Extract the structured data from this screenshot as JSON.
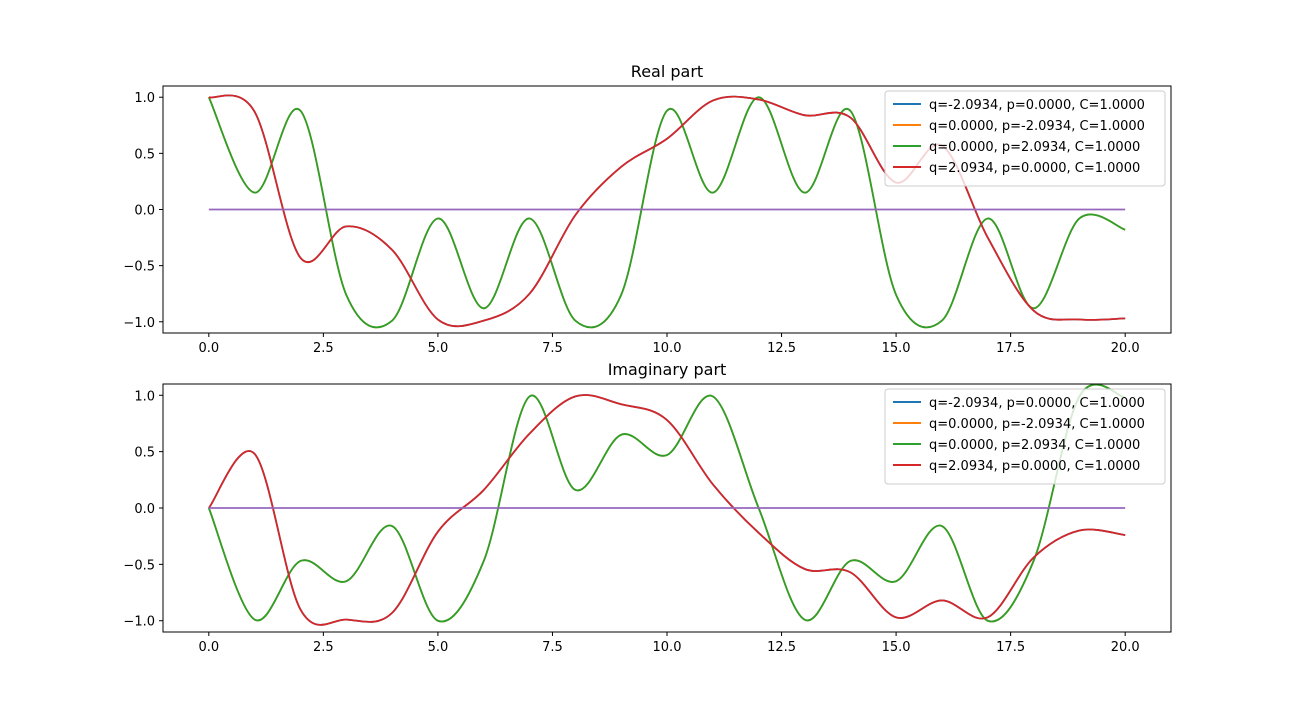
{
  "chart_data": [
    {
      "type": "line",
      "title": "Real part",
      "xlabel": "",
      "ylabel": "",
      "xlim": [
        -1,
        21
      ],
      "ylim": [
        -1.1,
        1.1
      ],
      "xticks": [
        0.0,
        2.5,
        5.0,
        7.5,
        10.0,
        12.5,
        15.0,
        17.5,
        20.0
      ],
      "xtick_labels": [
        "0.0",
        "2.5",
        "5.0",
        "7.5",
        "10.0",
        "12.5",
        "15.0",
        "17.5",
        "20.0"
      ],
      "yticks": [
        1.0,
        0.5,
        0.0,
        -0.5,
        -1.0
      ],
      "ytick_labels": [
        "1.0",
        "0.5",
        "0.0",
        "−0.5",
        "−1.0"
      ],
      "grid": false,
      "legend_position": "upper right",
      "series": [
        {
          "name": "q=-2.0934, p=0.0000, C=1.0000",
          "color": "#1f77b4",
          "x": [
            0,
            1,
            2,
            3,
            4,
            5,
            6,
            7,
            8,
            9,
            10,
            11,
            12,
            13,
            14,
            15,
            16,
            17,
            18,
            19,
            20
          ],
          "y": [
            1.0,
            0.87,
            -0.43,
            -0.15,
            -0.36,
            -0.98,
            -0.99,
            -0.75,
            -0.05,
            0.38,
            0.63,
            0.97,
            0.98,
            0.84,
            0.82,
            0.24,
            0.57,
            -0.25,
            -0.9,
            -0.98,
            -0.97
          ]
        },
        {
          "name": "q=0.0000, p=-2.0934, C=1.0000",
          "color": "#ff7f0e",
          "x": [
            0,
            1,
            2,
            3,
            4,
            5,
            6,
            7,
            8,
            9,
            10,
            11,
            12,
            13,
            14,
            15,
            16,
            17,
            18,
            19,
            20
          ],
          "y": [
            1.0,
            0.15,
            0.88,
            -0.76,
            -0.99,
            -0.08,
            -0.88,
            -0.08,
            -0.99,
            -0.76,
            0.88,
            0.15,
            1.0,
            0.15,
            0.88,
            -0.76,
            -0.99,
            -0.08,
            -0.88,
            -0.08,
            -0.18
          ]
        },
        {
          "name": "q=0.0000, p=2.0934, C=1.0000",
          "color": "#2ca02c",
          "x": [
            0,
            1,
            2,
            3,
            4,
            5,
            6,
            7,
            8,
            9,
            10,
            11,
            12,
            13,
            14,
            15,
            16,
            17,
            18,
            19,
            20
          ],
          "y": [
            1.0,
            0.15,
            0.88,
            -0.76,
            -0.99,
            -0.08,
            -0.88,
            -0.08,
            -0.99,
            -0.76,
            0.88,
            0.15,
            1.0,
            0.15,
            0.88,
            -0.76,
            -0.99,
            -0.08,
            -0.88,
            -0.08,
            -0.18
          ]
        },
        {
          "name": "q=2.0934, p=0.0000, C=1.0000",
          "color": "#d62728",
          "x": [
            0,
            1,
            2,
            3,
            4,
            5,
            6,
            7,
            8,
            9,
            10,
            11,
            12,
            13,
            14,
            15,
            16,
            17,
            18,
            19,
            20
          ],
          "y": [
            1.0,
            0.87,
            -0.43,
            -0.15,
            -0.36,
            -0.98,
            -0.99,
            -0.75,
            -0.05,
            0.38,
            0.63,
            0.97,
            0.98,
            0.84,
            0.82,
            0.24,
            0.57,
            -0.25,
            -0.9,
            -0.98,
            -0.97
          ]
        },
        {
          "name": "",
          "color": "#9467bd",
          "x": [
            0,
            20
          ],
          "y": [
            0.0,
            0.0
          ]
        }
      ]
    },
    {
      "type": "line",
      "title": "Imaginary part",
      "xlabel": "",
      "ylabel": "",
      "xlim": [
        -1,
        21
      ],
      "ylim": [
        -1.1,
        1.1
      ],
      "xticks": [
        0.0,
        2.5,
        5.0,
        7.5,
        10.0,
        12.5,
        15.0,
        17.5,
        20.0
      ],
      "xtick_labels": [
        "0.0",
        "2.5",
        "5.0",
        "7.5",
        "10.0",
        "12.5",
        "15.0",
        "17.5",
        "20.0"
      ],
      "yticks": [
        1.0,
        0.5,
        0.0,
        -0.5,
        -1.0
      ],
      "ytick_labels": [
        "1.0",
        "0.5",
        "0.0",
        "−0.5",
        "−1.0"
      ],
      "grid": false,
      "legend_position": "upper right",
      "series": [
        {
          "name": "q=-2.0934, p=0.0000, C=1.0000",
          "color": "#1f77b4",
          "x": [
            0,
            1,
            2,
            3,
            4,
            5,
            6,
            7,
            8,
            9,
            10,
            11,
            12,
            13,
            14,
            15,
            16,
            17,
            18,
            19,
            20
          ],
          "y": [
            0.0,
            0.48,
            -0.9,
            -0.99,
            -0.93,
            -0.21,
            0.16,
            0.66,
            0.99,
            0.92,
            0.78,
            0.21,
            -0.22,
            -0.54,
            -0.57,
            -0.97,
            -0.82,
            -0.97,
            -0.44,
            -0.2,
            -0.24
          ]
        },
        {
          "name": "q=0.0000, p=-2.0934, C=1.0000",
          "color": "#ff7f0e",
          "x": [
            0,
            1,
            2,
            3,
            4,
            5,
            6,
            7,
            8,
            9,
            10,
            11,
            12,
            13,
            14,
            15,
            16,
            17,
            18,
            19,
            20
          ],
          "y": [
            0.0,
            -0.99,
            -0.47,
            -0.65,
            -0.16,
            -1.0,
            -0.47,
            0.99,
            0.16,
            0.65,
            0.47,
            0.99,
            0.0,
            -0.99,
            -0.47,
            -0.65,
            -0.16,
            -1.0,
            -0.47,
            0.99,
            0.98
          ]
        },
        {
          "name": "q=0.0000, p=2.0934, C=1.0000",
          "color": "#2ca02c",
          "x": [
            0,
            1,
            2,
            3,
            4,
            5,
            6,
            7,
            8,
            9,
            10,
            11,
            12,
            13,
            14,
            15,
            16,
            17,
            18,
            19,
            20
          ],
          "y": [
            0.0,
            -0.99,
            -0.47,
            -0.65,
            -0.16,
            -1.0,
            -0.47,
            0.99,
            0.16,
            0.65,
            0.47,
            0.99,
            0.0,
            -0.99,
            -0.47,
            -0.65,
            -0.16,
            -1.0,
            -0.47,
            0.99,
            0.98
          ]
        },
        {
          "name": "q=2.0934, p=0.0000, C=1.0000",
          "color": "#d62728",
          "x": [
            0,
            1,
            2,
            3,
            4,
            5,
            6,
            7,
            8,
            9,
            10,
            11,
            12,
            13,
            14,
            15,
            16,
            17,
            18,
            19,
            20
          ],
          "y": [
            0.0,
            0.48,
            -0.9,
            -0.99,
            -0.93,
            -0.21,
            0.16,
            0.66,
            0.99,
            0.92,
            0.78,
            0.21,
            -0.22,
            -0.54,
            -0.57,
            -0.97,
            -0.82,
            -0.97,
            -0.44,
            -0.2,
            -0.24
          ]
        },
        {
          "name": "",
          "color": "#9467bd",
          "x": [
            0,
            20
          ],
          "y": [
            0.0,
            0.0
          ]
        }
      ]
    }
  ]
}
